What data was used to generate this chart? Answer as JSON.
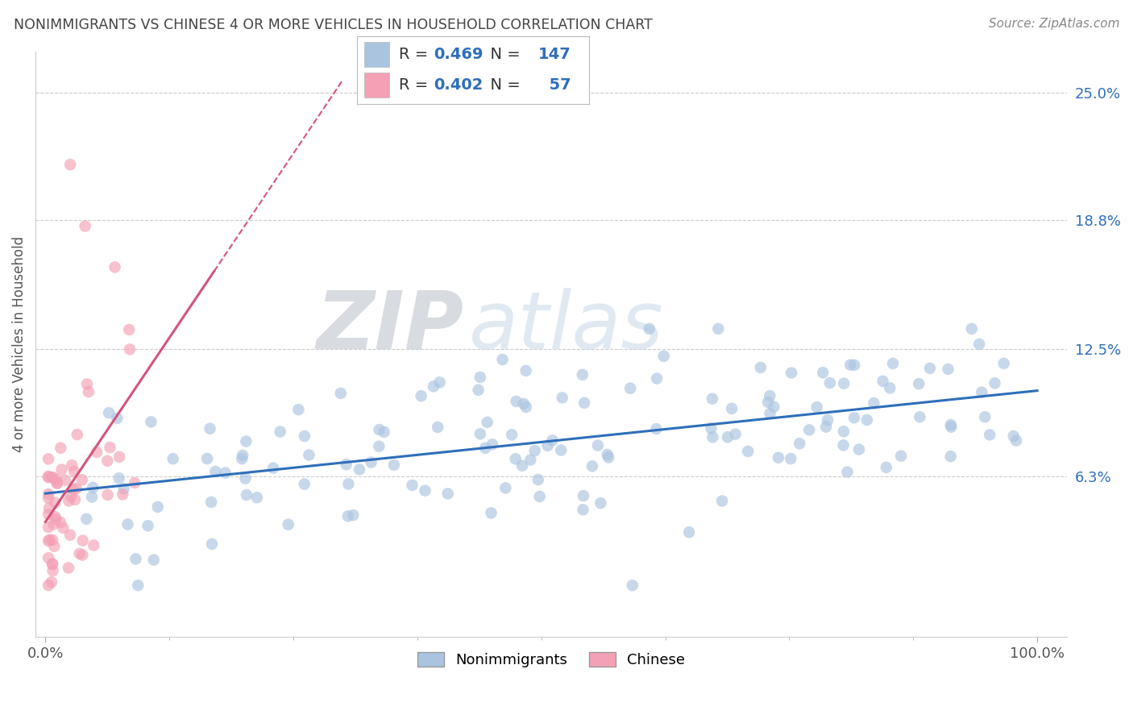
{
  "title": "NONIMMIGRANTS VS CHINESE 4 OR MORE VEHICLES IN HOUSEHOLD CORRELATION CHART",
  "source": "Source: ZipAtlas.com",
  "ylabel": "4 or more Vehicles in Household",
  "watermark_zip": "ZIP",
  "watermark_atlas": "atlas",
  "blue_R": 0.469,
  "blue_N": 147,
  "pink_R": 0.402,
  "pink_N": 57,
  "blue_color": "#aac4e0",
  "pink_color": "#f4a0b5",
  "blue_line_color": "#2e6fba",
  "pink_line_color": "#d4547a",
  "title_color": "#444444",
  "value_color": "#2e6fba",
  "x_tick_labels": [
    "0.0%",
    "100.0%"
  ],
  "y_tick_labels": [
    "6.3%",
    "12.5%",
    "18.8%",
    "25.0%"
  ],
  "y_ticks": [
    0.063,
    0.125,
    0.188,
    0.25
  ],
  "legend_labels": [
    "Nonimmigrants",
    "Chinese"
  ],
  "ylim_min": -0.015,
  "ylim_max": 0.27,
  "xlim_min": -0.01,
  "xlim_max": 1.03
}
